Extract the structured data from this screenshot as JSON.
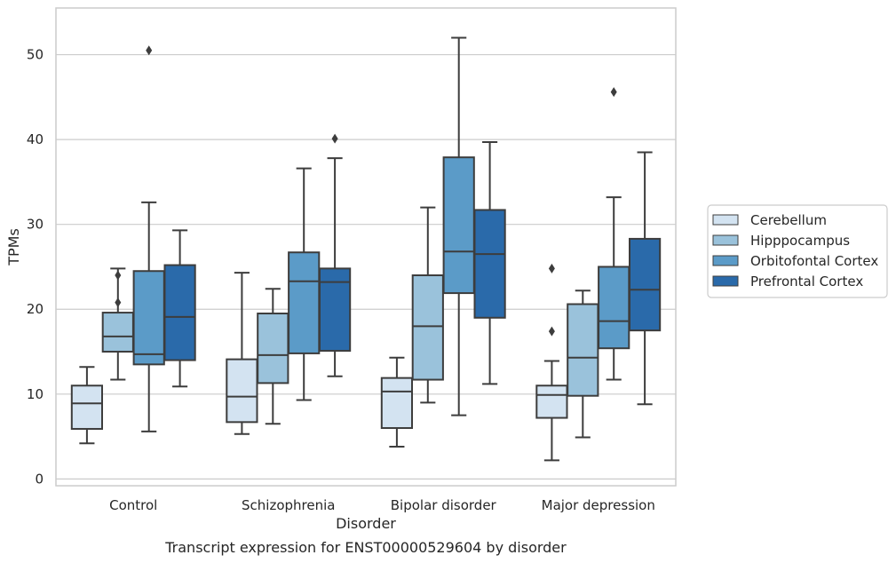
{
  "chart_data": {
    "type": "box",
    "xlabel": "Disorder",
    "ylabel": "TPMs",
    "caption": "Transcript expression for ENST00000529604 by disorder",
    "ylim": [
      -0.8,
      55.5
    ],
    "yticks": [
      0,
      10,
      20,
      30,
      40,
      50
    ],
    "grid": "horizontal",
    "legend_position": "right",
    "categories": [
      "Control",
      "Schizophrenia",
      "Bipolar disorder",
      "Major depression"
    ],
    "series": [
      {
        "name": "Cerebellum",
        "color": "#d3e3f1",
        "boxes": [
          {
            "whislo": 4.2,
            "q1": 5.9,
            "med": 8.9,
            "q3": 11.0,
            "whishi": 13.2,
            "fliers": []
          },
          {
            "whislo": 5.3,
            "q1": 6.7,
            "med": 9.7,
            "q3": 14.1,
            "whishi": 24.3,
            "fliers": []
          },
          {
            "whislo": 3.8,
            "q1": 6.0,
            "med": 10.3,
            "q3": 11.9,
            "whishi": 14.3,
            "fliers": []
          },
          {
            "whislo": 2.2,
            "q1": 7.2,
            "med": 9.9,
            "q3": 11.0,
            "whishi": 13.9,
            "fliers": [
              17.4,
              24.8
            ]
          }
        ]
      },
      {
        "name": "Hipppocampus",
        "color": "#9ac2db",
        "boxes": [
          {
            "whislo": 11.7,
            "q1": 15.0,
            "med": 16.8,
            "q3": 19.6,
            "whishi": 24.8,
            "fliers": [
              20.8,
              24.0
            ]
          },
          {
            "whislo": 6.5,
            "q1": 11.3,
            "med": 14.6,
            "q3": 19.5,
            "whishi": 22.4,
            "fliers": []
          },
          {
            "whislo": 9.0,
            "q1": 11.7,
            "med": 18.0,
            "q3": 24.0,
            "whishi": 32.0,
            "fliers": []
          },
          {
            "whislo": 4.9,
            "q1": 9.8,
            "med": 14.3,
            "q3": 20.6,
            "whishi": 22.2,
            "fliers": []
          }
        ]
      },
      {
        "name": "Orbitofontal Cortex",
        "color": "#5b9bc8",
        "boxes": [
          {
            "whislo": 5.6,
            "q1": 13.5,
            "med": 14.7,
            "q3": 24.5,
            "whishi": 32.6,
            "fliers": [
              50.5
            ]
          },
          {
            "whislo": 9.3,
            "q1": 14.8,
            "med": 23.3,
            "q3": 26.7,
            "whishi": 36.6,
            "fliers": []
          },
          {
            "whislo": 7.5,
            "q1": 21.9,
            "med": 26.8,
            "q3": 37.9,
            "whishi": 52.0,
            "fliers": []
          },
          {
            "whislo": 11.7,
            "q1": 15.4,
            "med": 18.6,
            "q3": 25.0,
            "whishi": 33.2,
            "fliers": [
              45.6
            ]
          }
        ]
      },
      {
        "name": "Prefrontal Cortex",
        "color": "#2a6aaa",
        "boxes": [
          {
            "whislo": 10.9,
            "q1": 14.0,
            "med": 19.1,
            "q3": 25.2,
            "whishi": 29.3,
            "fliers": []
          },
          {
            "whislo": 12.1,
            "q1": 15.1,
            "med": 23.2,
            "q3": 24.8,
            "whishi": 37.8,
            "fliers": [
              40.1
            ]
          },
          {
            "whislo": 11.2,
            "q1": 19.0,
            "med": 26.5,
            "q3": 31.7,
            "whishi": 39.7,
            "fliers": []
          },
          {
            "whislo": 8.8,
            "q1": 17.5,
            "med": 22.3,
            "q3": 28.3,
            "whishi": 38.5,
            "fliers": []
          }
        ]
      }
    ]
  }
}
